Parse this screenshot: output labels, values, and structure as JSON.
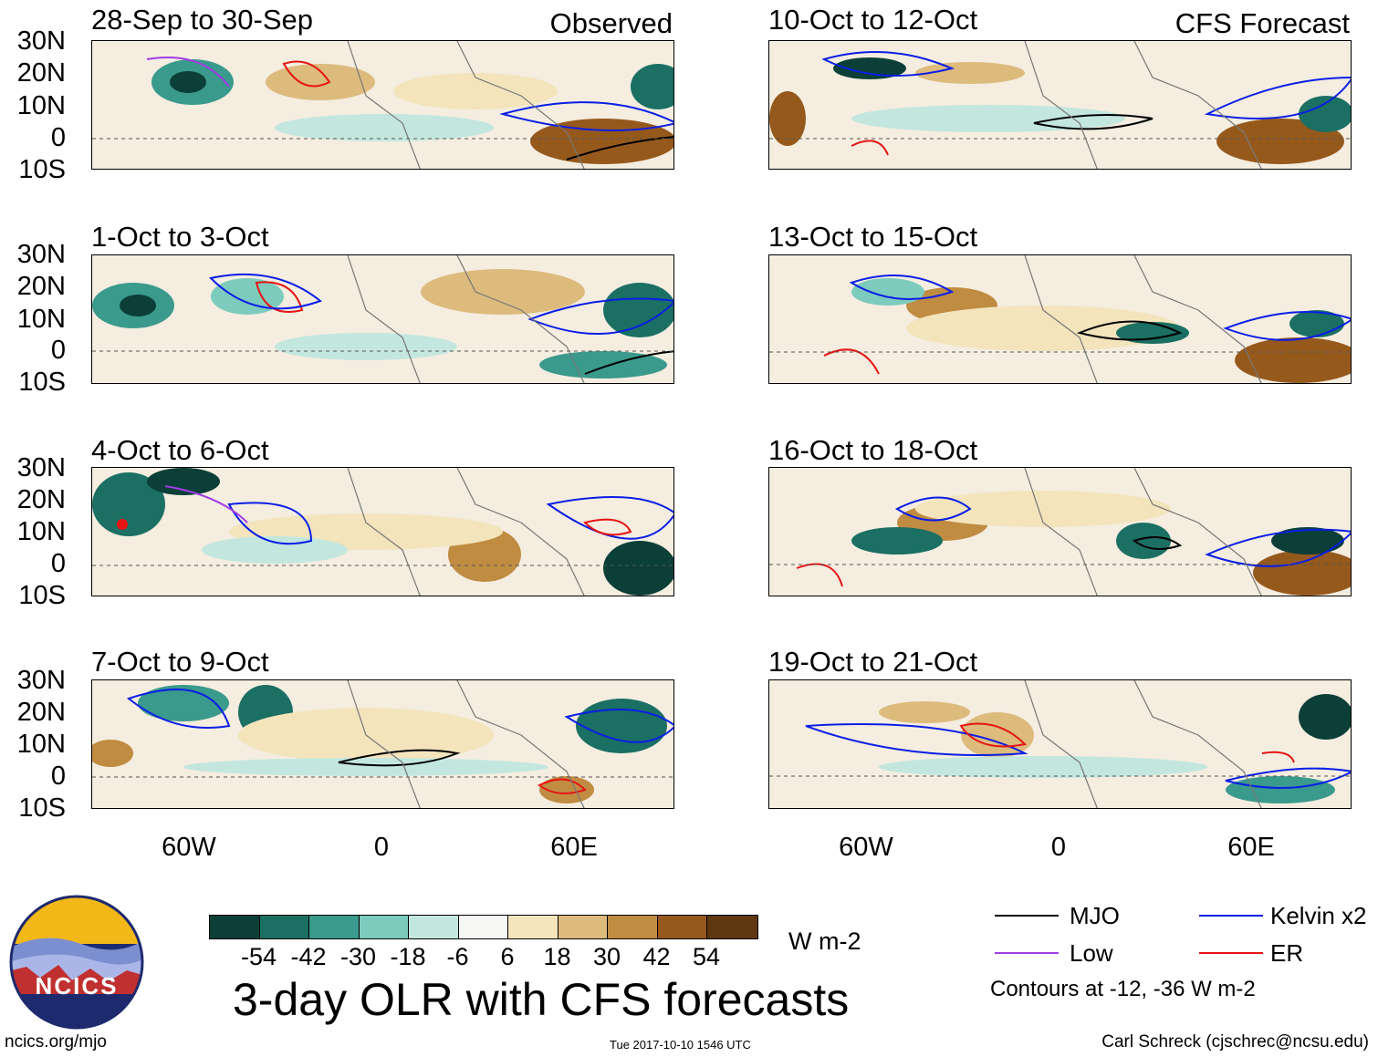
{
  "panels": [
    {
      "title": "28-Sep to 30-Sep",
      "corner": "Observed"
    },
    {
      "title": "1-Oct to 3-Oct",
      "corner": ""
    },
    {
      "title": "4-Oct to 6-Oct",
      "corner": ""
    },
    {
      "title": "7-Oct to 9-Oct",
      "corner": ""
    },
    {
      "title": "10-Oct to 12-Oct",
      "corner": "CFS Forecast"
    },
    {
      "title": "13-Oct to 15-Oct",
      "corner": ""
    },
    {
      "title": "16-Oct to 18-Oct",
      "corner": ""
    },
    {
      "title": "19-Oct to 21-Oct",
      "corner": ""
    }
  ],
  "lat_labels": [
    "30N",
    "20N",
    "10N",
    "0",
    "10S"
  ],
  "lon_labels": [
    "60W",
    "0",
    "60E"
  ],
  "colorbar": {
    "colors": [
      "#0b3f38",
      "#1b6f63",
      "#3a9a8c",
      "#7dcbbd",
      "#c3e7df",
      "#f6f6f4",
      "#f3e4bc",
      "#ddbb7d",
      "#c08c42",
      "#96591c",
      "#5f3810"
    ],
    "ticks": [
      "-54",
      "-42",
      "-30",
      "-18",
      "-6",
      "6",
      "18",
      "30",
      "42",
      "54"
    ],
    "units": "W m-2"
  },
  "title": "3-day OLR with CFS forecasts",
  "legend": {
    "items": [
      {
        "label": "MJO",
        "color": "#000000"
      },
      {
        "label": "Kelvin x2",
        "color": "#0a1ee6"
      },
      {
        "label": "Low",
        "color": "#a23ce6"
      },
      {
        "label": "ER",
        "color": "#e61414"
      }
    ],
    "note": "Contours at -12, -36 W m-2"
  },
  "logo_text": "NCICS",
  "footer": {
    "left": "ncics.org/mjo",
    "middle": "Tue 2017-10-10 1546 UTC",
    "right": "Carl Schreck (cjschrec@ncsu.edu)"
  }
}
